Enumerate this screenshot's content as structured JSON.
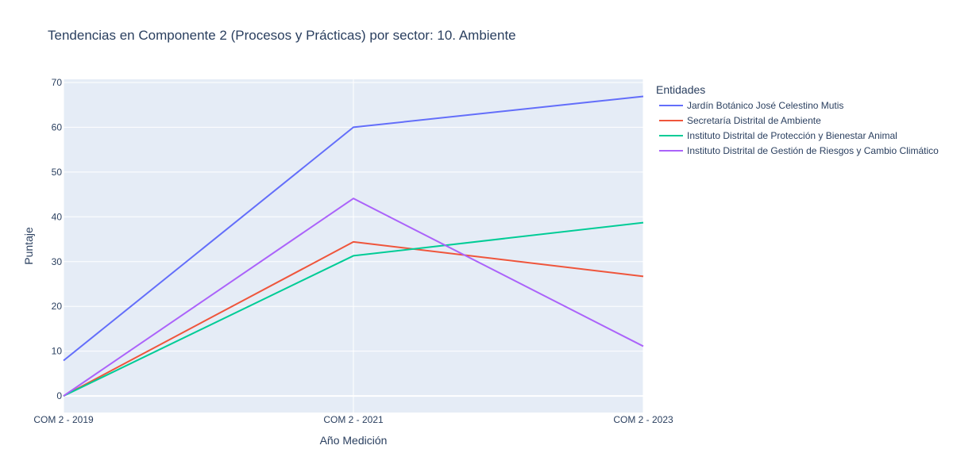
{
  "chart_data": {
    "type": "line",
    "title": "Tendencias en Componente 2 (Procesos y Prácticas) por sector: 10. Ambiente",
    "xlabel": "Año Medición",
    "ylabel": "Puntaje",
    "categories": [
      "COM 2 - 2019",
      "COM 2 - 2021",
      "COM 2 - 2023"
    ],
    "ylim": [
      -3.7,
      70.7
    ],
    "yticks": [
      0,
      10,
      20,
      30,
      40,
      50,
      60,
      70
    ],
    "grid": true,
    "legend_title": "Entidades",
    "legend_position": "right",
    "series": [
      {
        "name": "Jardín Botánico José Celestino Mutis",
        "color": "#636efa",
        "values": [
          7.9,
          60.0,
          66.9
        ]
      },
      {
        "name": "Secretaría Distrital de Ambiente",
        "color": "#ef553b",
        "values": [
          0.0,
          34.4,
          26.7
        ]
      },
      {
        "name": "Instituto Distrital de Protección y Bienestar Animal",
        "color": "#00cc96",
        "values": [
          0.0,
          31.3,
          38.7
        ]
      },
      {
        "name": "Instituto Distrital de Gestión de Riesgos y Cambio Climático",
        "color": "#ab63fa",
        "values": [
          0.0,
          44.1,
          11.1
        ]
      }
    ]
  }
}
